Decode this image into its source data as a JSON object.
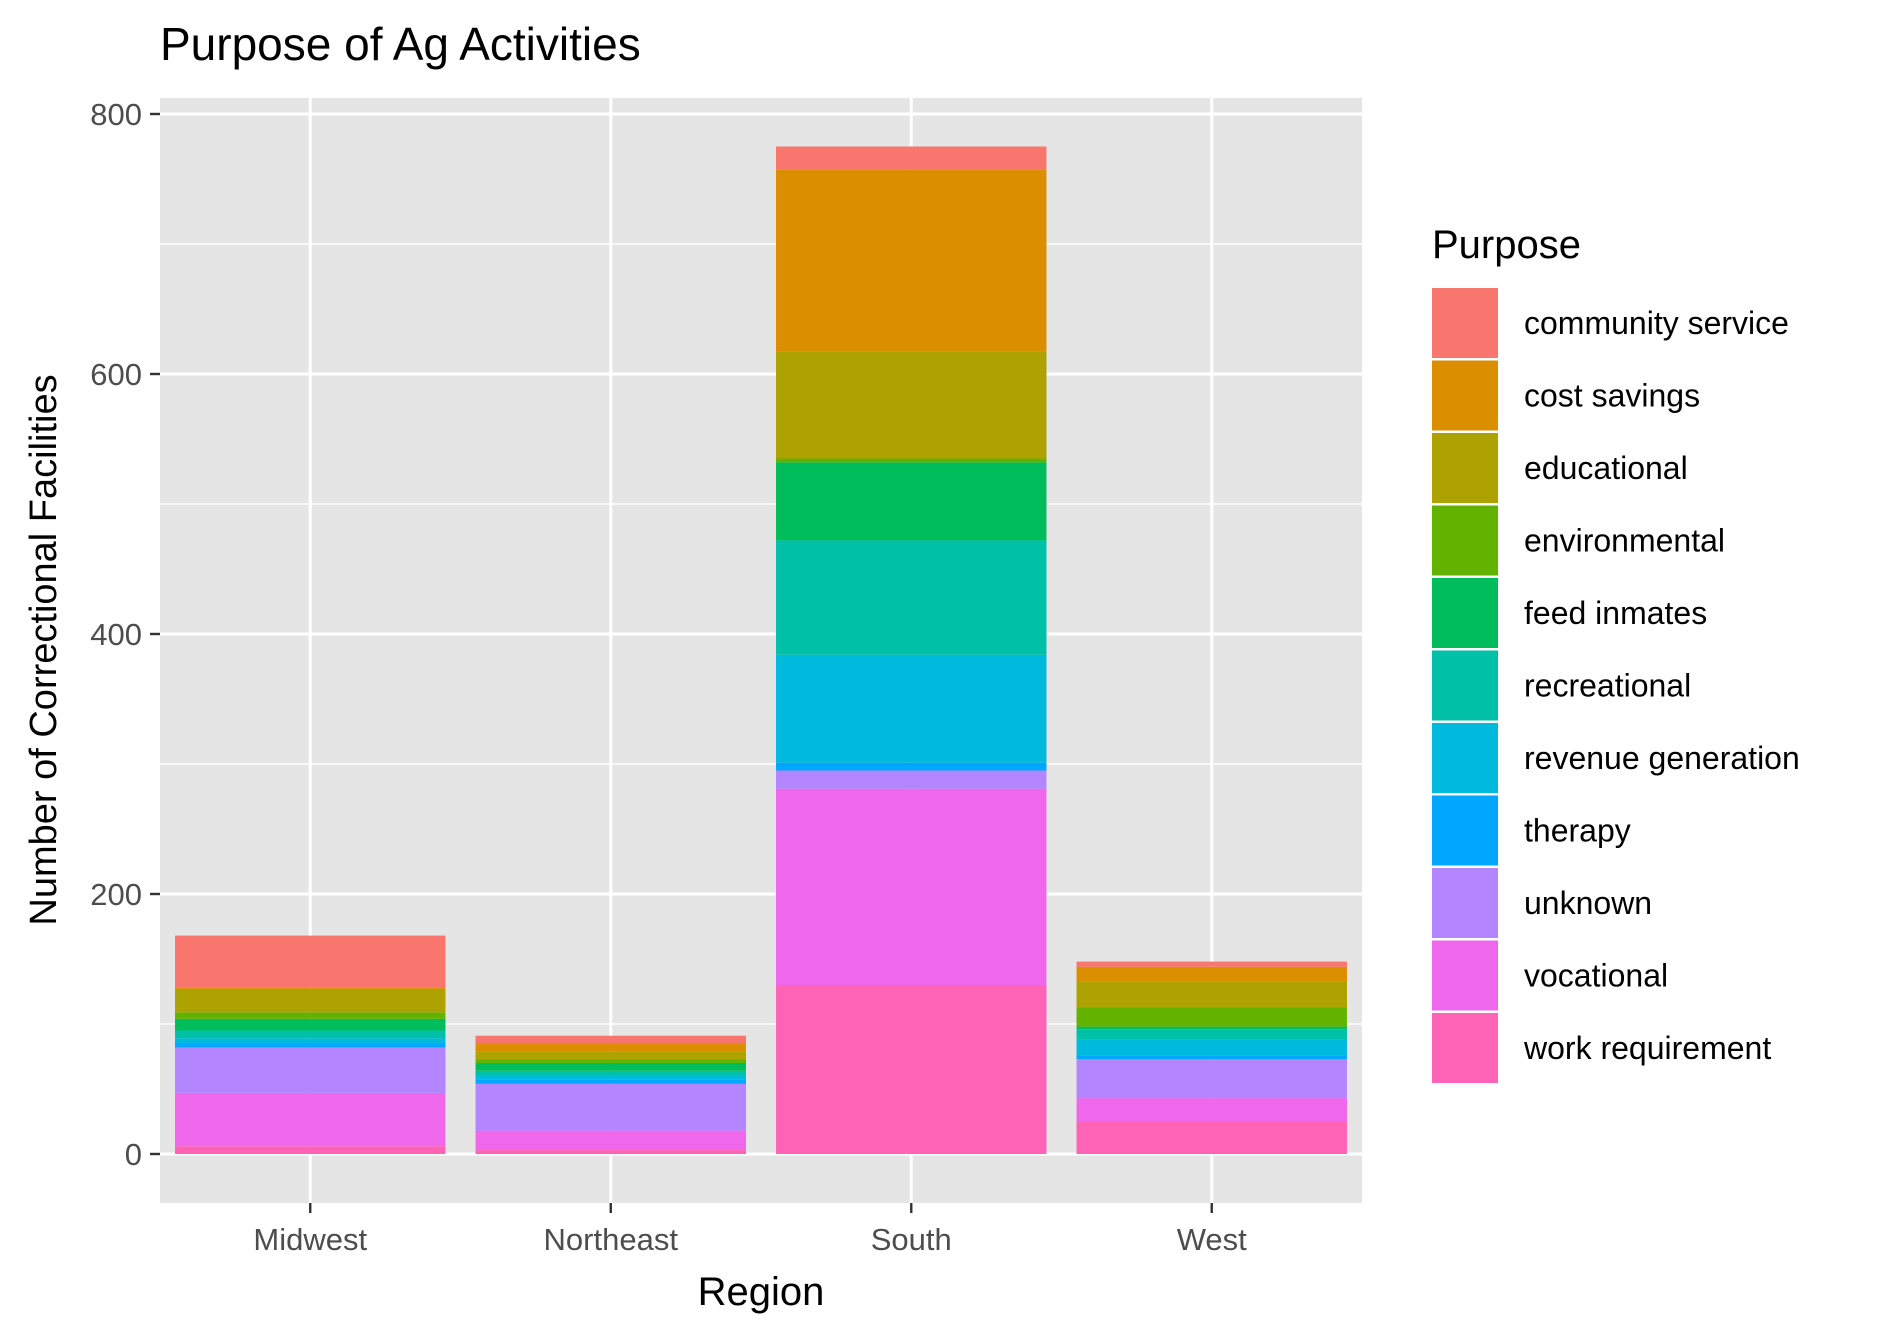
{
  "chart_data": {
    "type": "bar",
    "stacked": true,
    "title": "Purpose of Ag Activities",
    "xlabel": "Region",
    "ylabel": "Number of Correctional Facilities",
    "ylim": [
      -48,
      830
    ],
    "yticks": [
      0,
      200,
      400,
      600,
      800
    ],
    "grid": true,
    "legend_title": "Purpose",
    "legend_position": "right",
    "categories": [
      "Midwest",
      "Northeast",
      "South",
      "West"
    ],
    "series": [
      {
        "name": "community service",
        "color": "#F8766D",
        "values": [
          40,
          6,
          18,
          4
        ]
      },
      {
        "name": "cost savings",
        "color": "#DB8E00",
        "values": [
          1,
          6,
          140,
          11
        ]
      },
      {
        "name": "educational",
        "color": "#AEA200",
        "values": [
          18,
          6,
          82,
          20
        ]
      },
      {
        "name": "environmental",
        "color": "#64B200",
        "values": [
          5,
          3,
          3,
          15
        ]
      },
      {
        "name": "feed inmates",
        "color": "#00BD5C",
        "values": [
          9,
          6,
          60,
          2
        ]
      },
      {
        "name": "recreational",
        "color": "#00C1A7",
        "values": [
          6,
          4,
          88,
          8
        ]
      },
      {
        "name": "revenue generation",
        "color": "#00BADE",
        "values": [
          4,
          3,
          83,
          12
        ]
      },
      {
        "name": "therapy",
        "color": "#00A6FF",
        "values": [
          3,
          3,
          6,
          3
        ]
      },
      {
        "name": "unknown",
        "color": "#B385FF",
        "values": [
          35,
          36,
          14,
          30
        ]
      },
      {
        "name": "vocational",
        "color": "#EF67EB",
        "values": [
          41,
          15,
          151,
          18
        ]
      },
      {
        "name": "work requirement",
        "color": "#FF63B6",
        "values": [
          6,
          3,
          130,
          25
        ]
      }
    ]
  },
  "colors": {
    "panel_background": "#E5E5E5",
    "grid_line": "#FFFFFF",
    "axis_text": "#4D4D4D",
    "title_text": "#000000"
  }
}
